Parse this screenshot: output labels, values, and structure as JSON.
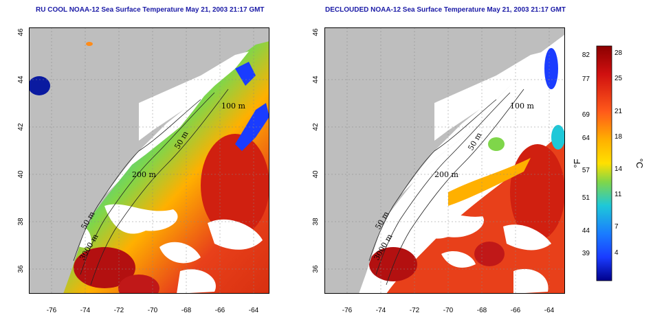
{
  "titles": {
    "left": "RU COOL NOAA-12 Sea Surface Temperature May 21, 2003 21:17 GMT",
    "right": "DECLOUDED NOAA-12 Sea Surface Temperature May 21, 2003 21:17 GMT"
  },
  "axes": {
    "x_ticks": [
      "-76",
      "-74",
      "-72",
      "-70",
      "-68",
      "-66",
      "-64"
    ],
    "y_ticks": [
      "36",
      "38",
      "40",
      "42",
      "44",
      "46"
    ]
  },
  "contours": {
    "label_100": "100 m",
    "label_50": "50 m",
    "label_200": "200 m",
    "label_3000": "3000 m"
  },
  "colorbar": {
    "unit_f": "°F",
    "unit_c": "°C",
    "f_ticks": [
      "82",
      "77",
      "69",
      "64",
      "57",
      "51",
      "44",
      "39"
    ],
    "c_ticks": [
      "28",
      "25",
      "21",
      "18",
      "14",
      "11",
      "7",
      "4"
    ],
    "colors": {
      "top": "#8b0000",
      "red": "#e01010",
      "orange": "#ff8c1a",
      "yellow": "#ffe000",
      "green": "#7fd64a",
      "cyan": "#1ec8d8",
      "blue": "#1a3cff",
      "bottom": "#00008b"
    }
  },
  "map_colors": {
    "land": "#bebebe",
    "cloud": "#ffffff",
    "warm": "#e8401a",
    "hot": "#b31010",
    "mid": "#ffb000",
    "cool": "#2a6bff",
    "cold": "#0a1aa0"
  }
}
